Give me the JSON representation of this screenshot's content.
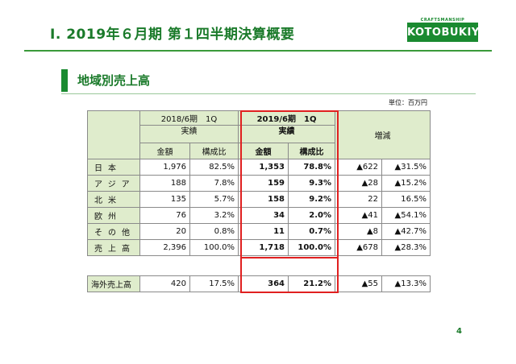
{
  "header": {
    "title": "Ⅰ. 2019年６月期 第１四半期決算概要",
    "logo_tagline": "CRAFTSMANSHIP",
    "logo_text": "KOTOBUKIYA"
  },
  "section": {
    "title": "地域別売上高"
  },
  "unit_label": "単位：百万円",
  "table": {
    "prev_period": {
      "line1": "2018/6期　1Q",
      "line2": "実績"
    },
    "curr_period": {
      "line1": "2019/6期　1Q",
      "line2": "実績"
    },
    "change_label": "増減",
    "col_amount": "金額",
    "col_ratio": "構成比",
    "rows": [
      {
        "label": "日本",
        "prev_amount": "1,976",
        "prev_ratio": "82.5%",
        "curr_amount": "1,353",
        "curr_ratio": "78.8%",
        "diff": "▲622",
        "diff_pct": "▲31.5%"
      },
      {
        "label": "アジア",
        "prev_amount": "188",
        "prev_ratio": "7.8%",
        "curr_amount": "159",
        "curr_ratio": "9.3%",
        "diff": "▲28",
        "diff_pct": "▲15.2%"
      },
      {
        "label": "北米",
        "prev_amount": "135",
        "prev_ratio": "5.7%",
        "curr_amount": "158",
        "curr_ratio": "9.2%",
        "diff": "22",
        "diff_pct": "16.5%"
      },
      {
        "label": "欧州",
        "prev_amount": "76",
        "prev_ratio": "3.2%",
        "curr_amount": "34",
        "curr_ratio": "2.0%",
        "diff": "▲41",
        "diff_pct": "▲54.1%"
      },
      {
        "label": "その他",
        "prev_amount": "20",
        "prev_ratio": "0.8%",
        "curr_amount": "11",
        "curr_ratio": "0.7%",
        "diff": "▲8",
        "diff_pct": "▲42.7%"
      },
      {
        "label": "売上高",
        "prev_amount": "2,396",
        "prev_ratio": "100.0%",
        "curr_amount": "1,718",
        "curr_ratio": "100.0%",
        "diff": "▲678",
        "diff_pct": "▲28.3%"
      }
    ],
    "overseas": {
      "label": "海外売上高",
      "prev_amount": "420",
      "prev_ratio": "17.5%",
      "curr_amount": "364",
      "curr_ratio": "21.2%",
      "diff": "▲55",
      "diff_pct": "▲13.3%"
    }
  },
  "page_number": "4",
  "colors": {
    "brand_green": "#1a8a30",
    "header_fill": "#dfeccc",
    "highlight_red": "#e02020"
  }
}
